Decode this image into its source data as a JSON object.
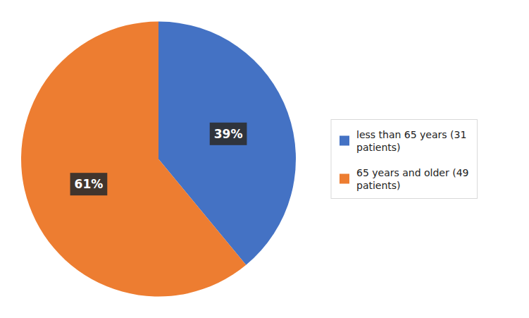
{
  "chart_data": {
    "type": "pie",
    "categories": [
      "less than 65 years (31\npatients)",
      "65 years and older (49\npatients)"
    ],
    "values": [
      39,
      61
    ],
    "value_labels": [
      "39%",
      "61%"
    ],
    "data_labels": true,
    "colors": [
      "#4472C4",
      "#ED7D31"
    ],
    "legend": "right"
  }
}
